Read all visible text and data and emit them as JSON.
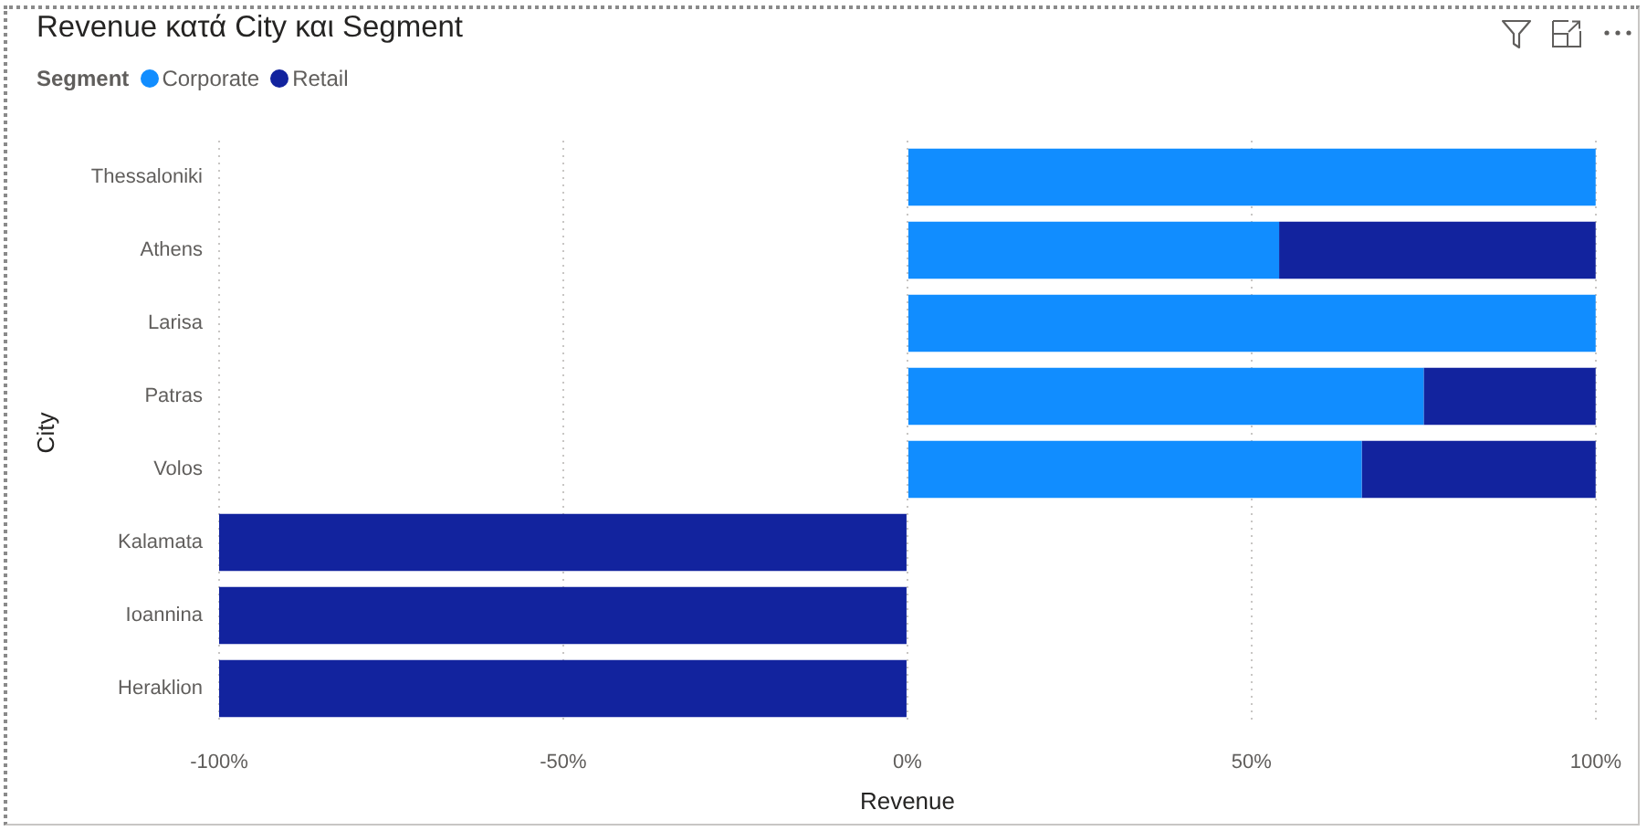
{
  "chart_data": {
    "type": "bar",
    "orientation": "horizontal",
    "stacked": true,
    "title": "Revenue κατά City και Segment",
    "xlabel": "Revenue",
    "ylabel": "City",
    "legend_title": "Segment",
    "legend": "top left",
    "categories": [
      "Thessaloniki",
      "Athens",
      "Larisa",
      "Patras",
      "Volos",
      "Kalamata",
      "Ioannina",
      "Heraklion"
    ],
    "series": [
      {
        "name": "Corporate",
        "color": "#118dff",
        "values": [
          100,
          54,
          100,
          75,
          66,
          null,
          null,
          null
        ]
      },
      {
        "name": "Retail",
        "color": "#12239e",
        "values": [
          null,
          46,
          null,
          25,
          34,
          -100,
          -100,
          -100
        ]
      }
    ],
    "xlim": [
      -100,
      100
    ],
    "xticks": [
      {
        "value": -100,
        "label": "-100%"
      },
      {
        "value": -50,
        "label": "-50%"
      },
      {
        "value": 0,
        "label": "0%"
      },
      {
        "value": 50,
        "label": "50%"
      },
      {
        "value": 100,
        "label": "100%"
      }
    ],
    "grid": "x"
  }
}
